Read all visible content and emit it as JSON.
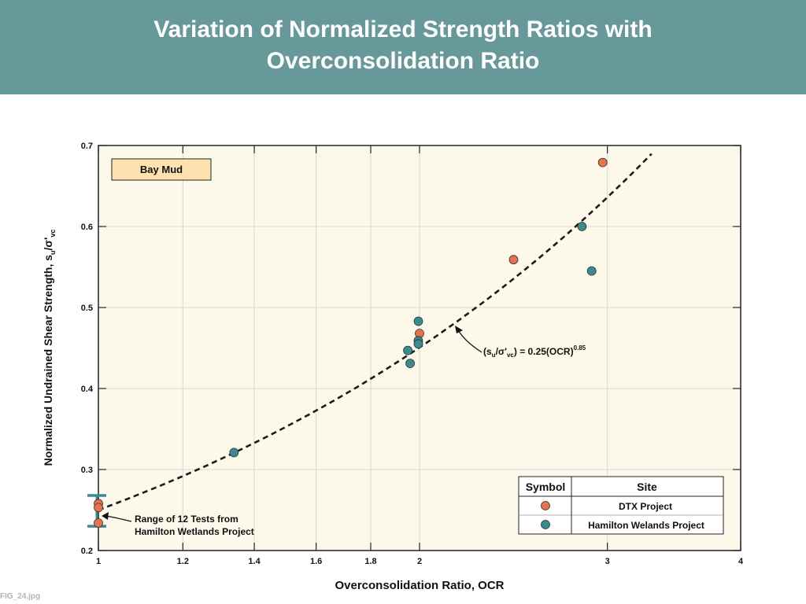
{
  "slide": {
    "title": "Variation of Normalized Strength Ratios with Overconsolidation Ratio",
    "caption": "FIG_24.jpg"
  },
  "chart_data": {
    "type": "scatter",
    "title": "",
    "xlabel": "Overconsolidation Ratio, OCR",
    "ylabel": "Normalized Undrained Shear Strength, su/σ'vc",
    "x_scale": "log",
    "xlim": [
      1,
      4
    ],
    "ylim": [
      0.2,
      0.7
    ],
    "x_ticks": [
      "1",
      "1.2",
      "1.4",
      "1.6",
      "1.8",
      "2",
      "3",
      "4"
    ],
    "y_ticks": [
      "0.2",
      "0.3",
      "0.4",
      "0.5",
      "0.6",
      "0.7"
    ],
    "grid": true,
    "material_label": "Bay Mud",
    "fit": {
      "label": "(su/σ'vc) = 0.25(OCR)^0.85",
      "coefficient": 0.25,
      "exponent": 0.85,
      "x_range": [
        1,
        3.3
      ],
      "style": "dashed"
    },
    "range_bar": {
      "x": 1,
      "y_low": 0.23,
      "y_high": 0.268,
      "note": "Range of 12 Tests from Hamilton Wetlands Project"
    },
    "legend": {
      "position": "bottom-right",
      "header_symbol": "Symbol",
      "header_site": "Site"
    },
    "series": [
      {
        "name": "DTX Project",
        "color": "#e8714e",
        "points": [
          [
            1.0,
            0.258
          ],
          [
            1.0,
            0.253
          ],
          [
            1.0,
            0.234
          ],
          [
            2.0,
            0.468
          ],
          [
            2.45,
            0.559
          ],
          [
            2.97,
            0.679
          ]
        ]
      },
      {
        "name": "Hamilton Welands Project",
        "color": "#3a8d8f",
        "points": [
          [
            1.34,
            0.321
          ],
          [
            1.95,
            0.447
          ],
          [
            1.96,
            0.431
          ],
          [
            1.995,
            0.483
          ],
          [
            1.995,
            0.459
          ],
          [
            1.995,
            0.455
          ],
          [
            2.84,
            0.6
          ],
          [
            2.9,
            0.545
          ]
        ]
      }
    ]
  }
}
